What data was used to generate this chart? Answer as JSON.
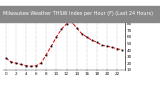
{
  "title": "Milwaukee Weather THSW Index per Hour (F) (Last 24 Hours)",
  "hours": [
    0,
    1,
    2,
    3,
    4,
    5,
    6,
    7,
    8,
    9,
    10,
    11,
    12,
    13,
    14,
    15,
    16,
    17,
    18,
    19,
    20,
    21,
    22,
    23
  ],
  "values": [
    28,
    22,
    20,
    18,
    16,
    15,
    16,
    20,
    33,
    46,
    60,
    72,
    80,
    83,
    74,
    65,
    60,
    55,
    52,
    47,
    46,
    44,
    42,
    40
  ],
  "line_color": "#dd0000",
  "marker_color": "#111111",
  "bg_color": "#ffffff",
  "plot_bg": "#ffffff",
  "grid_color": "#999999",
  "title_bg": "#888888",
  "title_fg": "#ffffff",
  "ylim_min": 10,
  "ylim_max": 90,
  "ytick_values": [
    10,
    20,
    30,
    40,
    50,
    60,
    70,
    80
  ],
  "ylabel_fontsize": 3.0,
  "xlabel_fontsize": 3.0,
  "title_fontsize": 3.5,
  "xtick_step": 2,
  "line_width": 0.7,
  "marker_size": 1.0
}
